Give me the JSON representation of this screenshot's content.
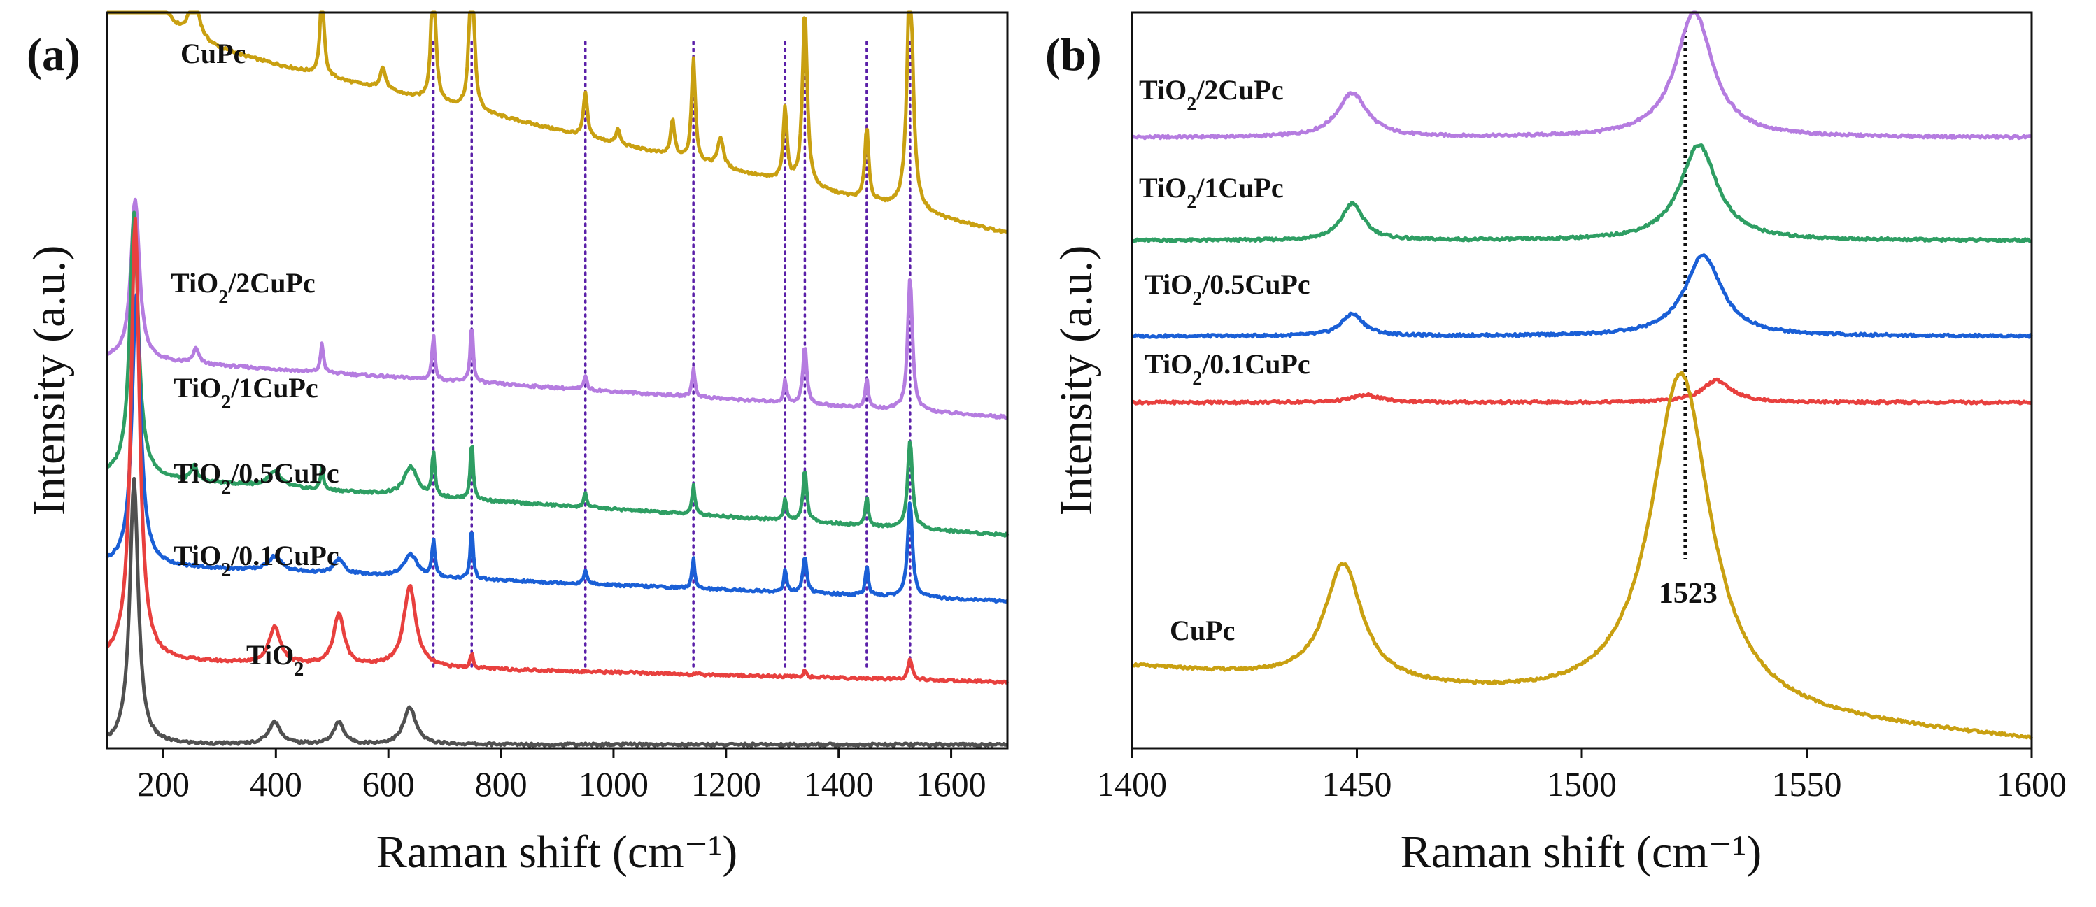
{
  "figure": {
    "panels": [
      {
        "label": "(a)"
      },
      {
        "label": "(b)"
      }
    ]
  },
  "chart_data": [
    {
      "type": "line",
      "panel": "(a)",
      "xlabel": "Raman shift (cm⁻¹)",
      "ylabel": "Intensity (a.u.)",
      "xlim": [
        100,
        1700
      ],
      "xticks": [
        200,
        400,
        600,
        800,
        1000,
        1200,
        1400,
        1600
      ],
      "ylim": [
        0,
        100
      ],
      "y_ticks_shown": false,
      "vertical_reference_lines_cm-1": [
        680,
        748,
        950,
        1142,
        1305,
        1340,
        1450,
        1527
      ],
      "reference_line_color": "#5a1fa8",
      "series": [
        {
          "name": "CuPc",
          "color": "#c9a011",
          "offset": 70,
          "drift": 28,
          "peaks": [
            [
              120,
              28,
              22
            ],
            [
              170,
              22,
              12
            ],
            [
              255,
              6,
              10
            ],
            [
              482,
              12,
              4
            ],
            [
              590,
              3,
              6
            ],
            [
              680,
              22,
              4
            ],
            [
              748,
              28,
              4
            ],
            [
              950,
              6,
              4
            ],
            [
              1008,
              2,
              4
            ],
            [
              1105,
              5,
              4
            ],
            [
              1142,
              14,
              4
            ],
            [
              1190,
              4,
              6
            ],
            [
              1305,
              10,
              4
            ],
            [
              1340,
              24,
              5
            ],
            [
              1450,
              10,
              4
            ],
            [
              1527,
              34,
              6
            ]
          ]
        },
        {
          "name": "TiO2/2CuPc",
          "color": "#b57ce0",
          "offset": 45,
          "drift": 8,
          "peaks": [
            [
              150,
              22,
              9
            ],
            [
              258,
              2,
              6
            ],
            [
              482,
              4,
              3
            ],
            [
              680,
              6,
              3
            ],
            [
              748,
              8,
              3
            ],
            [
              950,
              2,
              3
            ],
            [
              1142,
              4,
              3
            ],
            [
              1305,
              3,
              3
            ],
            [
              1340,
              8,
              4
            ],
            [
              1450,
              4,
              3
            ],
            [
              1527,
              18,
              5
            ]
          ]
        },
        {
          "name": "TiO2/1CuPc",
          "color": "#2e9e63",
          "offset": 29,
          "drift": 8,
          "peaks": [
            [
              148,
              36,
              9
            ],
            [
              255,
              2,
              6
            ],
            [
              398,
              2,
              14
            ],
            [
              482,
              3,
              3
            ],
            [
              640,
              4,
              14
            ],
            [
              680,
              6,
              3
            ],
            [
              748,
              8,
              3
            ],
            [
              950,
              2,
              3
            ],
            [
              1142,
              4,
              3
            ],
            [
              1305,
              3,
              3
            ],
            [
              1340,
              7,
              4
            ],
            [
              1450,
              4,
              3
            ],
            [
              1527,
              12,
              5
            ]
          ]
        },
        {
          "name": "TiO2/0.5CuPc",
          "color": "#1a5fd6",
          "offset": 20,
          "drift": 5,
          "peaks": [
            [
              152,
              37,
              9
            ],
            [
              398,
              2,
              14
            ],
            [
              512,
              2,
              10
            ],
            [
              640,
              3,
              14
            ],
            [
              680,
              5,
              3
            ],
            [
              748,
              7,
              3
            ],
            [
              950,
              2,
              3
            ],
            [
              1142,
              4,
              3
            ],
            [
              1305,
              3,
              3
            ],
            [
              1340,
              5,
              4
            ],
            [
              1450,
              4,
              3
            ],
            [
              1527,
              13,
              5
            ]
          ]
        },
        {
          "name": "TiO2/0.1CuPc",
          "color": "#e8403e",
          "offset": 9,
          "drift": 3,
          "peaks": [
            [
              150,
              60,
              9
            ],
            [
              398,
              5,
              12
            ],
            [
              512,
              7,
              11
            ],
            [
              638,
              11,
              13
            ],
            [
              748,
              2,
              3
            ],
            [
              1340,
              1,
              3
            ],
            [
              1527,
              3,
              4
            ]
          ]
        },
        {
          "name": "TiO2",
          "color": "#505050",
          "offset": 0.5,
          "drift": 0,
          "peaks": [
            [
              148,
              36,
              9
            ],
            [
              398,
              3,
              13
            ],
            [
              512,
              3,
              11
            ],
            [
              638,
              5,
              13
            ]
          ]
        }
      ]
    },
    {
      "type": "line",
      "panel": "(b)",
      "xlabel": "Raman shift (cm⁻¹)",
      "ylabel": "Intensity (a.u.)",
      "xlim": [
        1400,
        1600
      ],
      "xticks": [
        1400,
        1450,
        1500,
        1550,
        1600
      ],
      "ylim": [
        0,
        100
      ],
      "y_ticks_shown": false,
      "reference_line": {
        "x": 1523,
        "label": "1523"
      },
      "series": [
        {
          "name": "TiO2/2CuPc",
          "color": "#b57ce0",
          "offset": 83,
          "drift": 0,
          "peaks": [
            [
              1449,
              6,
              4
            ],
            [
              1525,
              17,
              5
            ]
          ]
        },
        {
          "name": "TiO2/1CuPc",
          "color": "#2e9e63",
          "offset": 69,
          "drift": 0,
          "peaks": [
            [
              1449,
              5,
              3
            ],
            [
              1526,
              13,
              5
            ]
          ]
        },
        {
          "name": "TiO2/0.5CuPc",
          "color": "#1a5fd6",
          "offset": 56,
          "drift": 0,
          "peaks": [
            [
              1449,
              3,
              3
            ],
            [
              1527,
              11,
              5
            ]
          ]
        },
        {
          "name": "TiO2/0.1CuPc",
          "color": "#e8403e",
          "offset": 47,
          "drift": 0,
          "peaks": [
            [
              1452,
              1,
              4
            ],
            [
              1530,
              3,
              4
            ]
          ]
        },
        {
          "name": "CuPc",
          "color": "#c9a011",
          "offset": 1,
          "drift": 10,
          "peaks": [
            [
              1447,
              16,
              5
            ],
            [
              1522,
              46,
              8
            ]
          ]
        }
      ]
    }
  ]
}
